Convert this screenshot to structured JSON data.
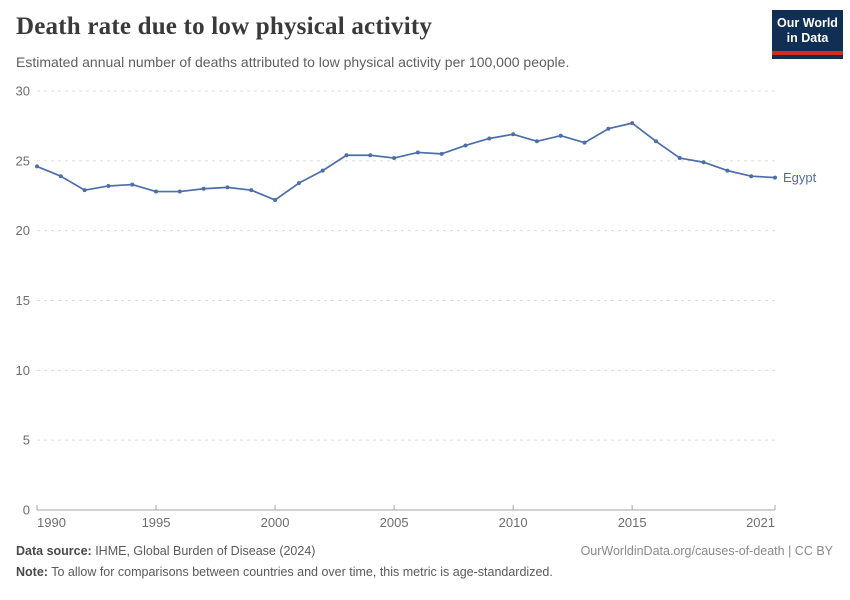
{
  "header": {
    "title": "Death rate due to low physical activity",
    "subtitle": "Estimated annual number of deaths attributed to low physical activity per 100,000 people.",
    "logo": {
      "line1": "Our World",
      "line2": "in Data",
      "bg_color": "#0f2f55",
      "stripe_color": "#d7291f"
    }
  },
  "chart_data": {
    "type": "line",
    "title": "Death rate due to low physical activity",
    "xlabel": "",
    "ylabel": "",
    "xlim": [
      1990,
      2021
    ],
    "ylim": [
      0,
      30
    ],
    "x_ticks": [
      1990,
      1995,
      2000,
      2005,
      2010,
      2015,
      2021
    ],
    "y_ticks": [
      0,
      5,
      10,
      15,
      20,
      25,
      30
    ],
    "grid": "horizontal-dashed",
    "legend_position": "end-of-line-label",
    "x": [
      1990,
      1991,
      1992,
      1993,
      1994,
      1995,
      1996,
      1997,
      1998,
      1999,
      2000,
      2001,
      2002,
      2003,
      2004,
      2005,
      2006,
      2007,
      2008,
      2009,
      2010,
      2011,
      2012,
      2013,
      2014,
      2015,
      2016,
      2017,
      2018,
      2019,
      2020,
      2021
    ],
    "series": [
      {
        "name": "Egypt",
        "color": "#4c6ea9",
        "values": [
          24.6,
          23.9,
          22.9,
          23.2,
          23.3,
          22.8,
          22.8,
          23.0,
          23.1,
          22.9,
          22.2,
          23.4,
          24.3,
          25.4,
          25.4,
          25.2,
          25.6,
          25.5,
          26.1,
          26.6,
          26.9,
          26.4,
          26.8,
          26.3,
          27.3,
          27.7,
          26.4,
          25.2,
          24.9,
          24.3,
          23.9,
          23.8
        ]
      }
    ]
  },
  "colors": {
    "line": "#4c6ea9",
    "grid": "#dcdcdc",
    "axis": "#a5a5a5",
    "tick_text": "#6e6e6e"
  },
  "footer": {
    "source_label": "Data source:",
    "source_text": " IHME, Global Burden of Disease (2024)",
    "link_text": "OurWorldinData.org/causes-of-death | CC BY",
    "note_label": "Note:",
    "note_text": " To allow for comparisons between countries and over time, this metric is age-standardized."
  }
}
